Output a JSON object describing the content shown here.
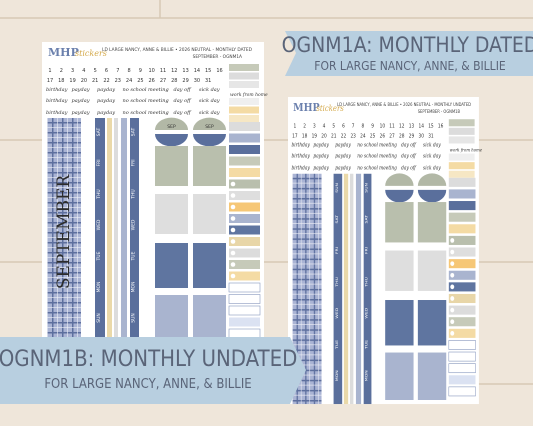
{
  "banner_top": {
    "title": "OGNM1A: MONTHLY DATED",
    "subtitle": "FOR LARGE NANCY, ANNE, & BILLIE"
  },
  "banner_bottom": {
    "title": "OGNM1B: MONTHLY UNDATED",
    "subtitle": "FOR LARGE NANCY, ANNE, & BILLIE"
  },
  "sheets": [
    {
      "logo": "MHP",
      "logo_script": "stickers",
      "line1": "LD LARGE NANCY, ANNE & BILLIE • 2026 NEUTRAL - MONTHLY DATED",
      "line2": "SEPTEMBER - OGNM1A",
      "dates": [
        "1",
        "2",
        "3",
        "4",
        "5",
        "6",
        "7",
        "8",
        "9",
        "10",
        "11",
        "12",
        "13",
        "14",
        "15",
        "16",
        "17",
        "18",
        "19",
        "20",
        "21",
        "22",
        "23",
        "24",
        "25",
        "26",
        "27",
        "28",
        "29",
        "30",
        "31"
      ],
      "words": [
        "birthday",
        "payday",
        "payday",
        "no school",
        "meeting",
        "day off",
        "sick day"
      ],
      "side_label": "work from home",
      "month": "SEPTEMBER",
      "days": [
        "SAT",
        "FRI",
        "THU",
        "WED",
        "TUE",
        "MON",
        "SUN"
      ],
      "tab": "SEP"
    },
    {
      "logo": "MHP",
      "logo_script": "stickers",
      "line1": "LD LARGE NANCY, ANNE & BILLIE • 2026 NEUTRAL - MONTHLY UNDATED",
      "line2": "SEPTEMBER - OGNM1B",
      "dates": [
        "1",
        "2",
        "3",
        "4",
        "5",
        "6",
        "7",
        "8",
        "9",
        "10",
        "11",
        "12",
        "13",
        "14",
        "15",
        "16",
        "17",
        "18",
        "19",
        "20",
        "21",
        "22",
        "23",
        "24",
        "25",
        "26",
        "27",
        "28",
        "29",
        "30",
        "31"
      ],
      "words": [
        "birthday",
        "payday",
        "payday",
        "no school",
        "meeting",
        "day off",
        "sick day"
      ],
      "side_label": "work from home",
      "days": [
        "SUN",
        "SAT",
        "FRI",
        "THU",
        "WED",
        "TUE",
        "MON"
      ]
    }
  ]
}
